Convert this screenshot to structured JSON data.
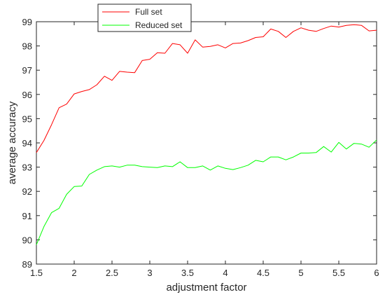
{
  "chart_data": {
    "type": "line",
    "xlabel": "adjustment factor",
    "ylabel": "average accuracy",
    "xlim": [
      1.5,
      6
    ],
    "ylim": [
      89,
      99
    ],
    "xticks": [
      "1.5",
      "2",
      "2.5",
      "3",
      "3.5",
      "4",
      "4.5",
      "5",
      "5.5",
      "6"
    ],
    "yticks": [
      "89",
      "90",
      "91",
      "92",
      "93",
      "94",
      "95",
      "96",
      "97",
      "98",
      "99"
    ],
    "grid": false,
    "legend_position": "top-left-outside",
    "x": [
      1.5,
      1.6,
      1.7,
      1.8,
      1.9,
      2.0,
      2.1,
      2.2,
      2.3,
      2.4,
      2.5,
      2.6,
      2.7,
      2.8,
      2.9,
      3.0,
      3.1,
      3.2,
      3.3,
      3.4,
      3.5,
      3.6,
      3.7,
      3.8,
      3.9,
      4.0,
      4.1,
      4.2,
      4.3,
      4.4,
      4.5,
      4.6,
      4.7,
      4.8,
      4.9,
      5.0,
      5.1,
      5.2,
      5.3,
      5.4,
      5.5,
      5.6,
      5.7,
      5.8,
      5.9,
      6.0
    ],
    "series": [
      {
        "name": "Full set",
        "color": "#ff0000",
        "values": [
          93.6,
          94.1,
          94.75,
          95.45,
          95.6,
          96.02,
          96.12,
          96.2,
          96.4,
          96.75,
          96.58,
          96.95,
          96.92,
          96.9,
          97.4,
          97.45,
          97.72,
          97.7,
          98.1,
          98.05,
          97.7,
          98.25,
          97.95,
          97.98,
          98.05,
          97.92,
          98.1,
          98.12,
          98.22,
          98.35,
          98.38,
          98.7,
          98.6,
          98.35,
          98.6,
          98.75,
          98.65,
          98.6,
          98.72,
          98.82,
          98.78,
          98.85,
          98.88,
          98.85,
          98.62,
          98.65
        ]
      },
      {
        "name": "Reduced set",
        "color": "#00ff00",
        "values": [
          89.8,
          90.55,
          91.12,
          91.3,
          91.88,
          92.2,
          92.22,
          92.7,
          92.88,
          93.02,
          93.05,
          93.0,
          93.08,
          93.08,
          93.02,
          93.0,
          92.98,
          93.05,
          93.02,
          93.22,
          92.98,
          92.98,
          93.05,
          92.88,
          93.05,
          92.95,
          92.9,
          92.98,
          93.08,
          93.28,
          93.22,
          93.42,
          93.42,
          93.3,
          93.42,
          93.58,
          93.58,
          93.6,
          93.85,
          93.62,
          94.02,
          93.75,
          93.98,
          93.95,
          93.82,
          94.12
        ]
      }
    ]
  }
}
